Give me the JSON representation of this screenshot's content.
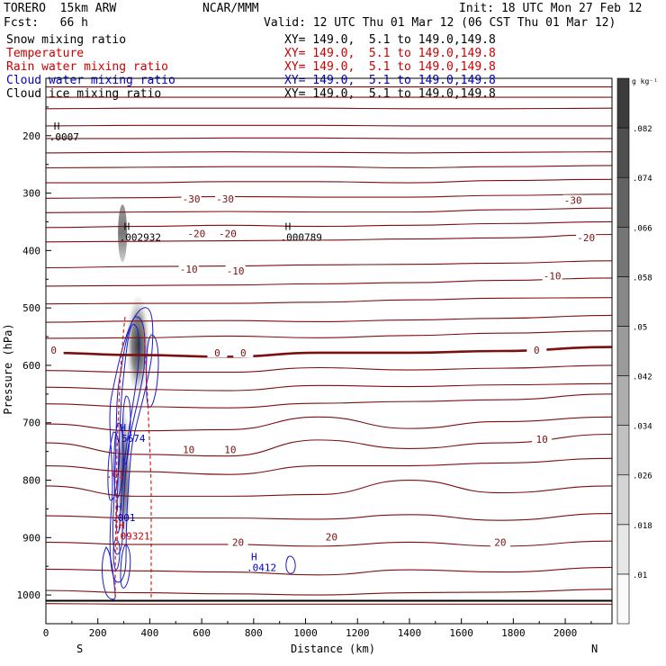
{
  "header": {
    "model": "TORERO  15km ARW",
    "org": "NCAR/MMM",
    "init": "Init: 18 UTC Mon 27 Feb 12",
    "fcst": "Fcst:   66 h",
    "valid": "Valid: 12 UTC Thu 01 Mar 12 (06 CST Thu 01 Mar 12)"
  },
  "fields": [
    {
      "name": "Snow mixing ratio",
      "xy": "XY= 149.0,  5.1 to 149.0,149.8",
      "color": "#000000"
    },
    {
      "name": "Temperature",
      "xy": "XY= 149.0,  5.1 to 149.0,149.8",
      "color": "#cc0000"
    },
    {
      "name": "Rain water mixing ratio",
      "xy": "XY= 149.0,  5.1 to 149.0,149.8",
      "color": "#cc0000"
    },
    {
      "name": "Cloud water mixing ratio",
      "xy": "XY= 149.0,  5.1 to 149.0,149.8",
      "color": "#0000cc"
    },
    {
      "name": "Cloud ice mixing ratio",
      "xy": "XY= 149.0,  5.1 to 149.0,149.8",
      "color": "#000000"
    }
  ],
  "chart_data": {
    "type": "heatmap",
    "xlabel": "Distance (km)",
    "ylabel": "Pressure (hPa)",
    "xlim": [
      0,
      2180
    ],
    "ylim": [
      1050,
      100
    ],
    "xticks": [
      0,
      200,
      400,
      600,
      800,
      1000,
      1200,
      1400,
      1600,
      1800,
      2000
    ],
    "yticks": [
      200,
      300,
      400,
      500,
      600,
      700,
      800,
      900,
      1000
    ],
    "x_end_labels": {
      "left": "S",
      "right": "N"
    },
    "colorbar": {
      "unit": "g kg⁻¹",
      "levels": [
        ".01",
        ".018",
        ".026",
        ".034",
        ".042",
        ".05",
        ".058",
        ".066",
        ".074",
        ".082"
      ]
    },
    "temperature_labels": [
      {
        "value": "-30",
        "x": [
          560,
          690,
          2030
        ],
        "p": [
          312,
          312,
          314
        ]
      },
      {
        "value": "-20",
        "x": [
          580,
          700,
          2080
        ],
        "p": [
          372,
          372,
          379
        ]
      },
      {
        "value": "-10",
        "x": [
          550,
          730,
          1950
        ],
        "p": [
          434,
          437,
          446
        ]
      },
      {
        "value": "0",
        "x": [
          30,
          660,
          760,
          1890
        ],
        "p": [
          575,
          580,
          580,
          575
        ]
      },
      {
        "value": "10",
        "x": [
          550,
          710,
          1910
        ],
        "p": [
          748,
          748,
          730
        ]
      },
      {
        "value": "20",
        "x": [
          740,
          1100,
          1750
        ],
        "p": [
          910,
          900,
          910
        ]
      }
    ],
    "maxima": [
      {
        "label": ".0007",
        "x": 20,
        "p": 205,
        "color": "#000000"
      },
      {
        "label": ".002932",
        "x": 290,
        "p": 380,
        "color": "#000000"
      },
      {
        "label": ".000789",
        "x": 910,
        "p": 380,
        "color": "#000000"
      },
      {
        "label": ".5674",
        "x": 275,
        "p": 730,
        "color": "#0000cc"
      },
      {
        "label": ".001",
        "x": 260,
        "p": 868,
        "color": "#0000cc"
      },
      {
        "label": ".09321",
        "x": 270,
        "p": 900,
        "color": "#cc0000"
      },
      {
        "label": ".0412",
        "x": 780,
        "p": 955,
        "color": "#0000cc"
      }
    ]
  }
}
